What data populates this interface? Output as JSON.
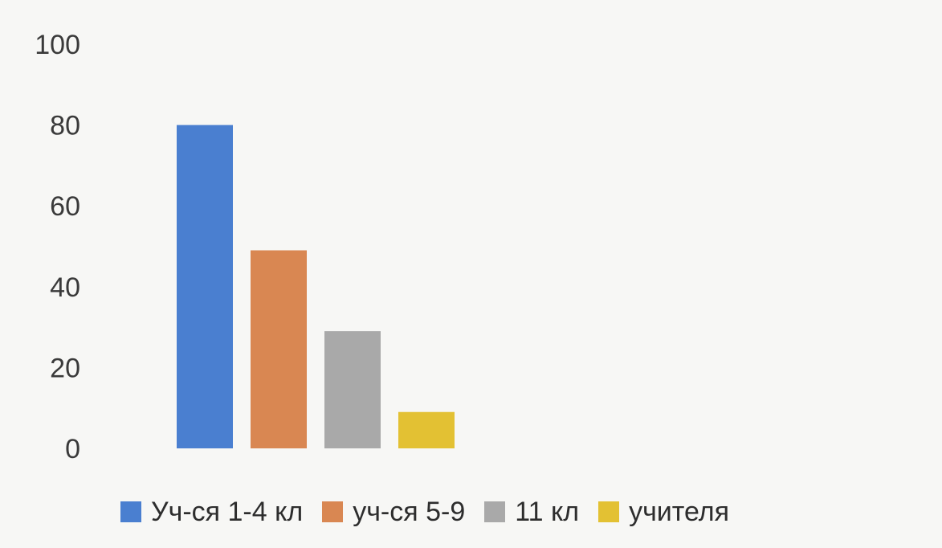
{
  "chart_data": {
    "type": "bar",
    "categories": [
      "Уч-ся 1-4 кл",
      "уч-ся 5-9",
      "11 кл",
      "учителя"
    ],
    "values": [
      80,
      49,
      29,
      9
    ],
    "colors": [
      "#4a7fd0",
      "#d98752",
      "#a9a9a9",
      "#e3c133"
    ],
    "ylim": [
      0,
      100
    ],
    "yticks": [
      0,
      20,
      40,
      60,
      80,
      100
    ],
    "grid": false,
    "legend_position": "bottom",
    "title": "",
    "xlabel": "",
    "ylabel": ""
  }
}
